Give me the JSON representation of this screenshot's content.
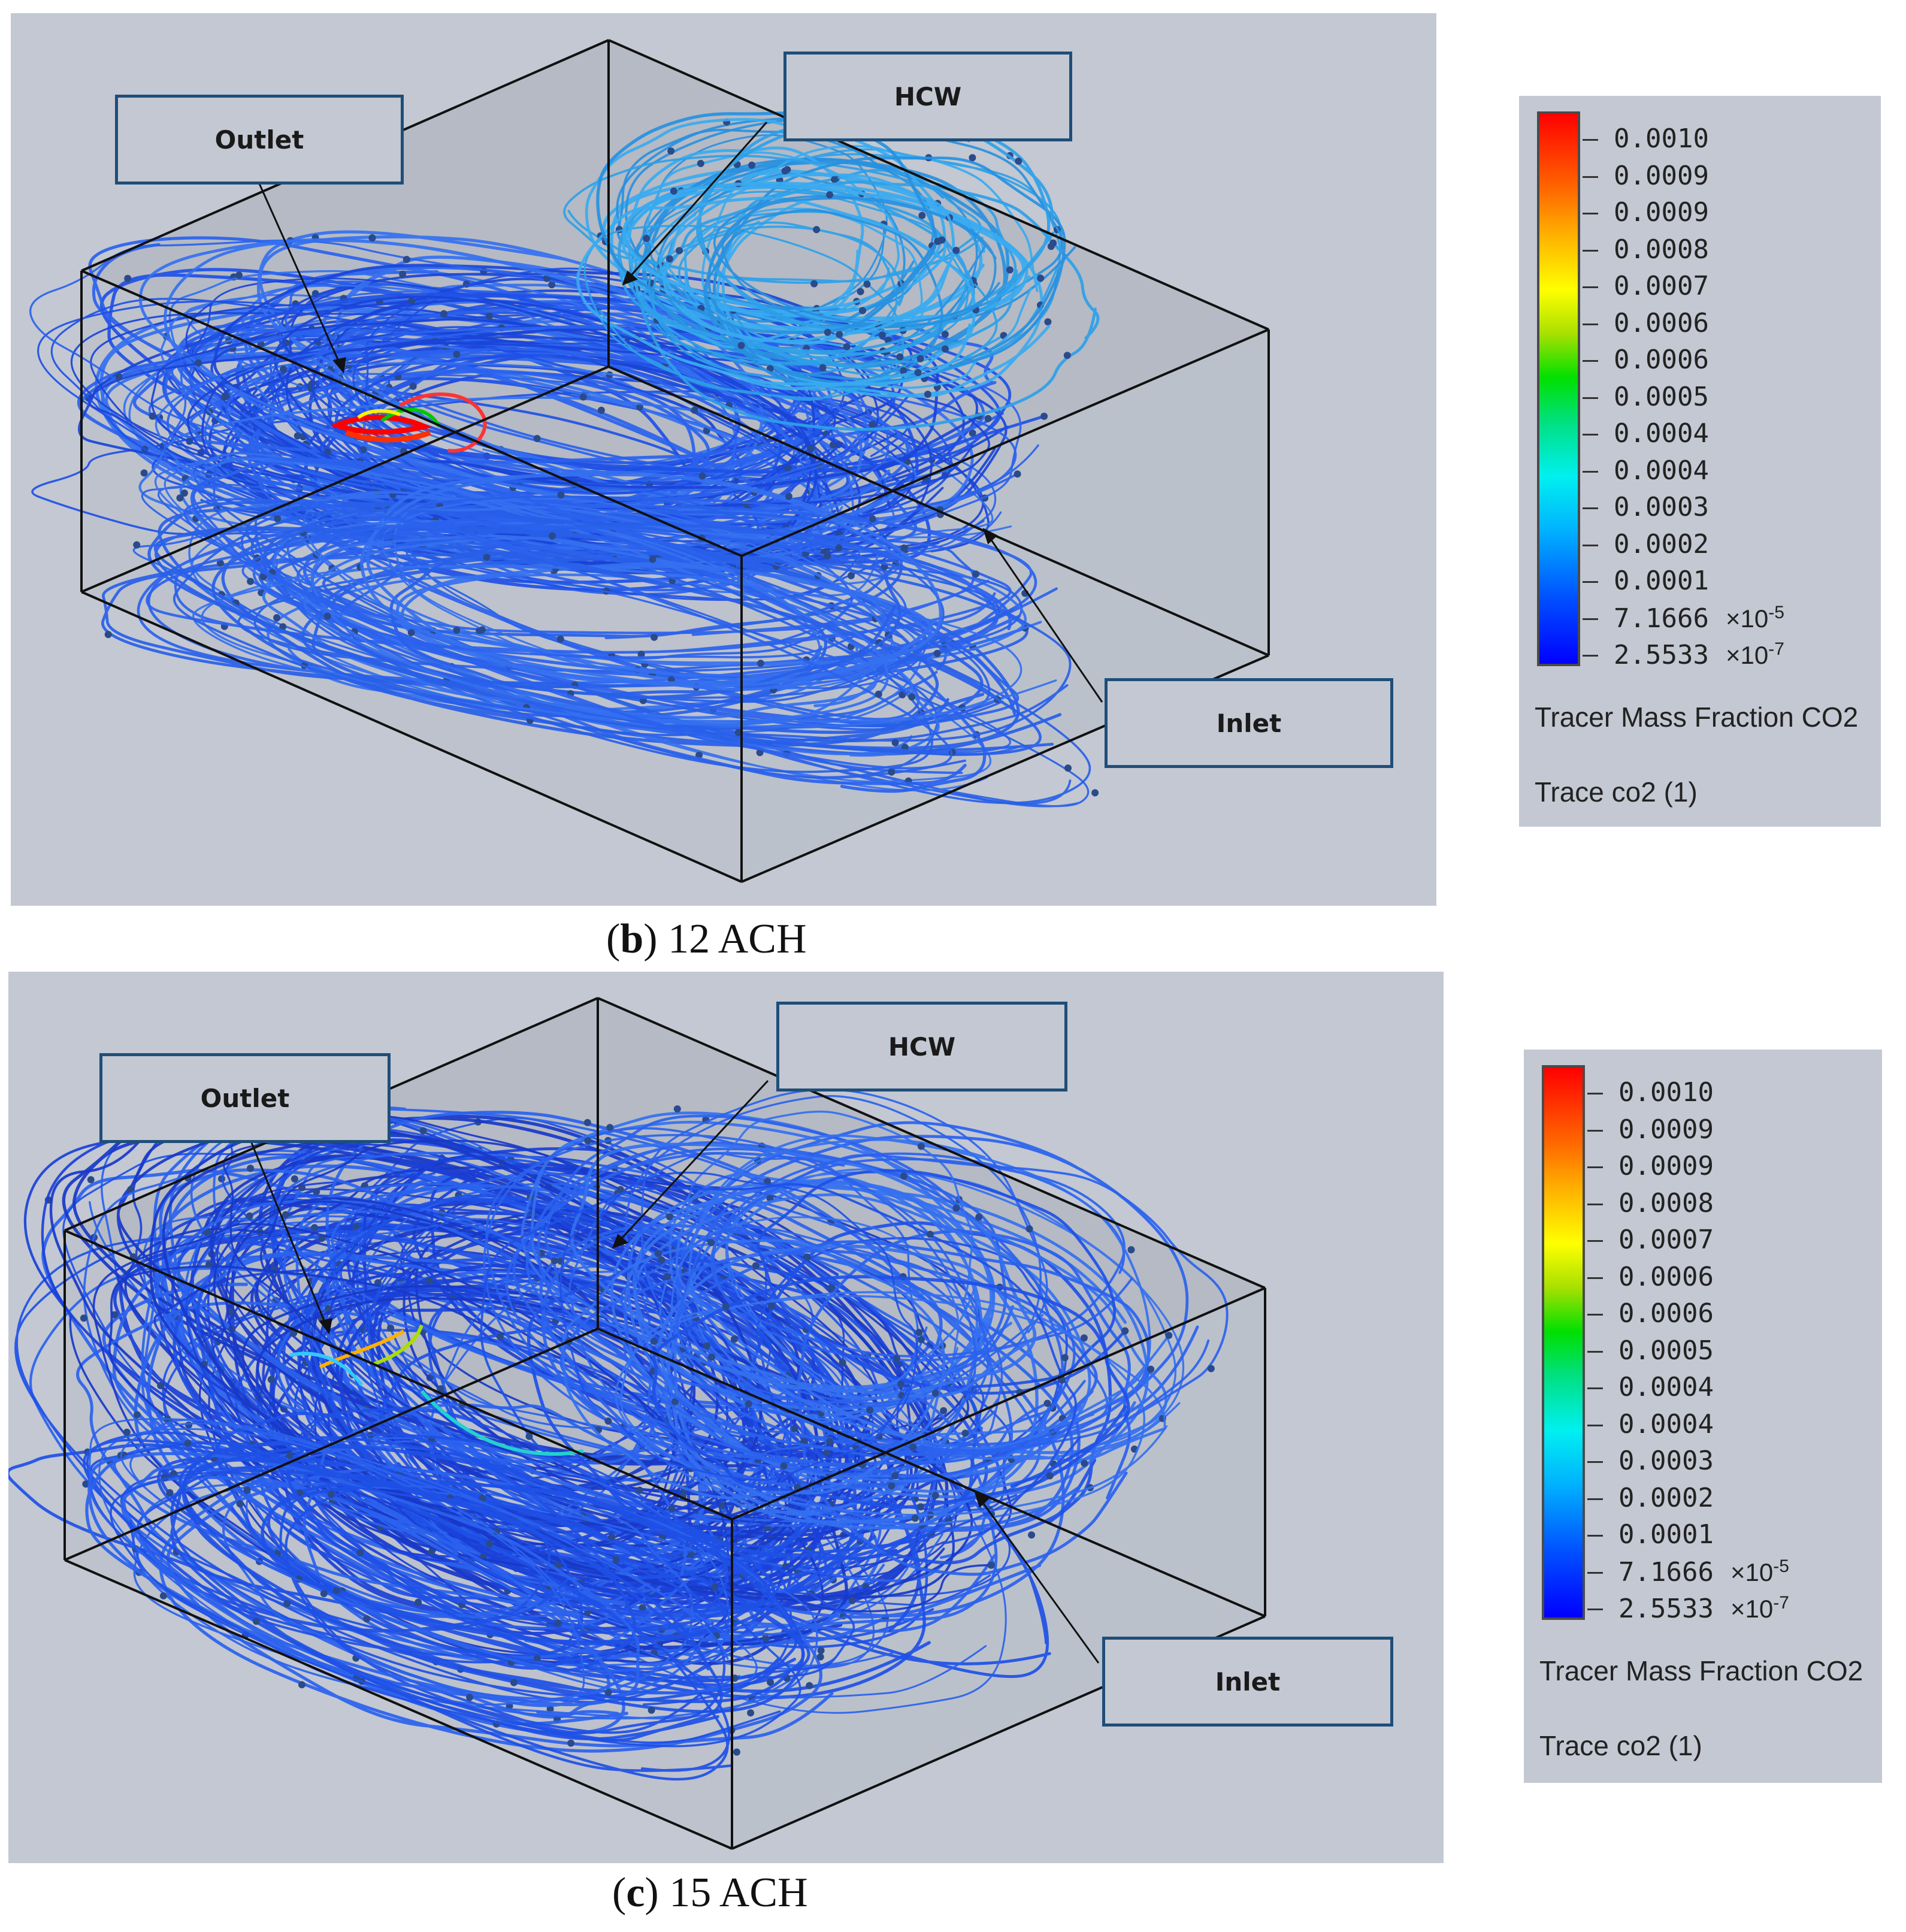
{
  "panels": [
    {
      "caption_letter": "b",
      "caption_text": "12 ACH",
      "callouts": {
        "outlet": "Outlet",
        "hcw": "HCW",
        "inlet": "Inlet"
      },
      "legend": {
        "values": [
          "0.0010",
          "0.0009",
          "0.0009",
          "0.0008",
          "0.0007",
          "0.0006",
          "0.0006",
          "0.0005",
          "0.0004",
          "0.0004",
          "0.0003",
          "0.0002",
          "0.0001",
          "7.1666",
          "2.5533"
        ],
        "exp_low1_base": "×10",
        "exp_low1_pow": "-5",
        "exp_low2_base": "×10",
        "exp_low2_pow": "-7",
        "title": "Tracer Mass Fraction CO2",
        "subtitle": "Trace co2 (1)"
      }
    },
    {
      "caption_letter": "c",
      "caption_text": "15 ACH",
      "callouts": {
        "outlet": "Outlet",
        "hcw": "HCW",
        "inlet": "Inlet"
      },
      "legend": {
        "values": [
          "0.0010",
          "0.0009",
          "0.0009",
          "0.0008",
          "0.0007",
          "0.0006",
          "0.0006",
          "0.0005",
          "0.0004",
          "0.0004",
          "0.0003",
          "0.0002",
          "0.0001",
          "7.1666",
          "2.5533"
        ],
        "exp_low1_base": "×10",
        "exp_low1_pow": "-5",
        "exp_low2_base": "×10",
        "exp_low2_pow": "-7",
        "title": "Tracer Mass Fraction CO2",
        "subtitle": "Trace co2 (1)"
      }
    }
  ],
  "colors": {
    "background": "#c3c8d2",
    "streamline_main": "#1e50e6",
    "streamline_light": "#2ea0e8",
    "callout_border": "#1f4e79"
  }
}
